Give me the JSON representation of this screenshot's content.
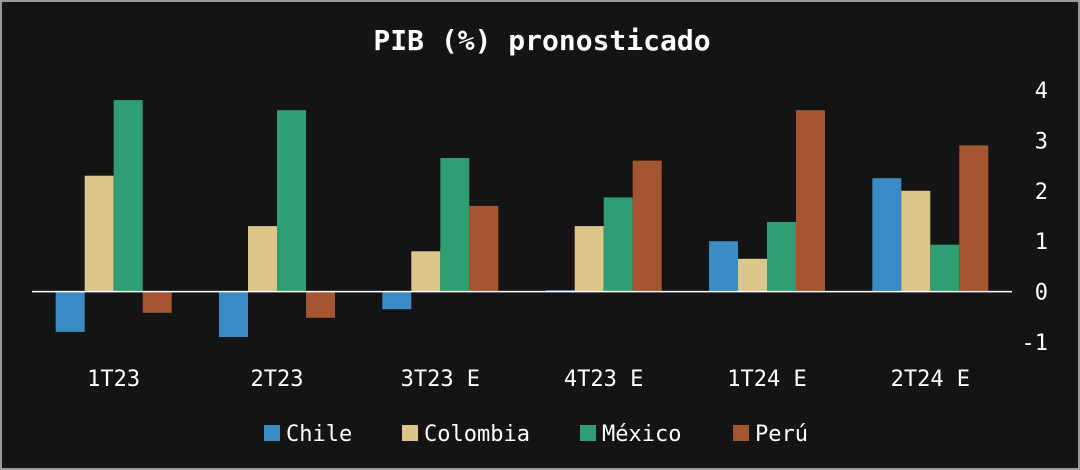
{
  "chart_data": {
    "type": "bar",
    "title": "PIB (%) pronosticado",
    "xlabel": "",
    "ylabel": "",
    "categories": [
      "1T23",
      "2T23",
      "3T23 E",
      "4T23 E",
      "1T24 E",
      "2T24 E"
    ],
    "series": [
      {
        "name": "Chile",
        "color": "#3a8ac4",
        "values": [
          -0.8,
          -0.9,
          -0.35,
          0.03,
          1.0,
          2.25
        ]
      },
      {
        "name": "Colombia",
        "color": "#dcc68a",
        "values": [
          2.3,
          1.3,
          0.8,
          1.3,
          0.65,
          2.0
        ]
      },
      {
        "name": "México",
        "color": "#2f9e73",
        "values": [
          3.8,
          3.6,
          2.65,
          1.87,
          1.38,
          0.93
        ]
      },
      {
        "name": "Perú",
        "color": "#a3552f",
        "values": [
          -0.42,
          -0.52,
          1.7,
          2.6,
          3.6,
          2.9
        ]
      }
    ],
    "yticks": [
      "-1",
      "0",
      "1",
      "2",
      "3",
      "4"
    ],
    "ylim": [
      -1,
      4
    ],
    "y_axis_position": "right",
    "grid": false,
    "legend_position": "bottom"
  }
}
